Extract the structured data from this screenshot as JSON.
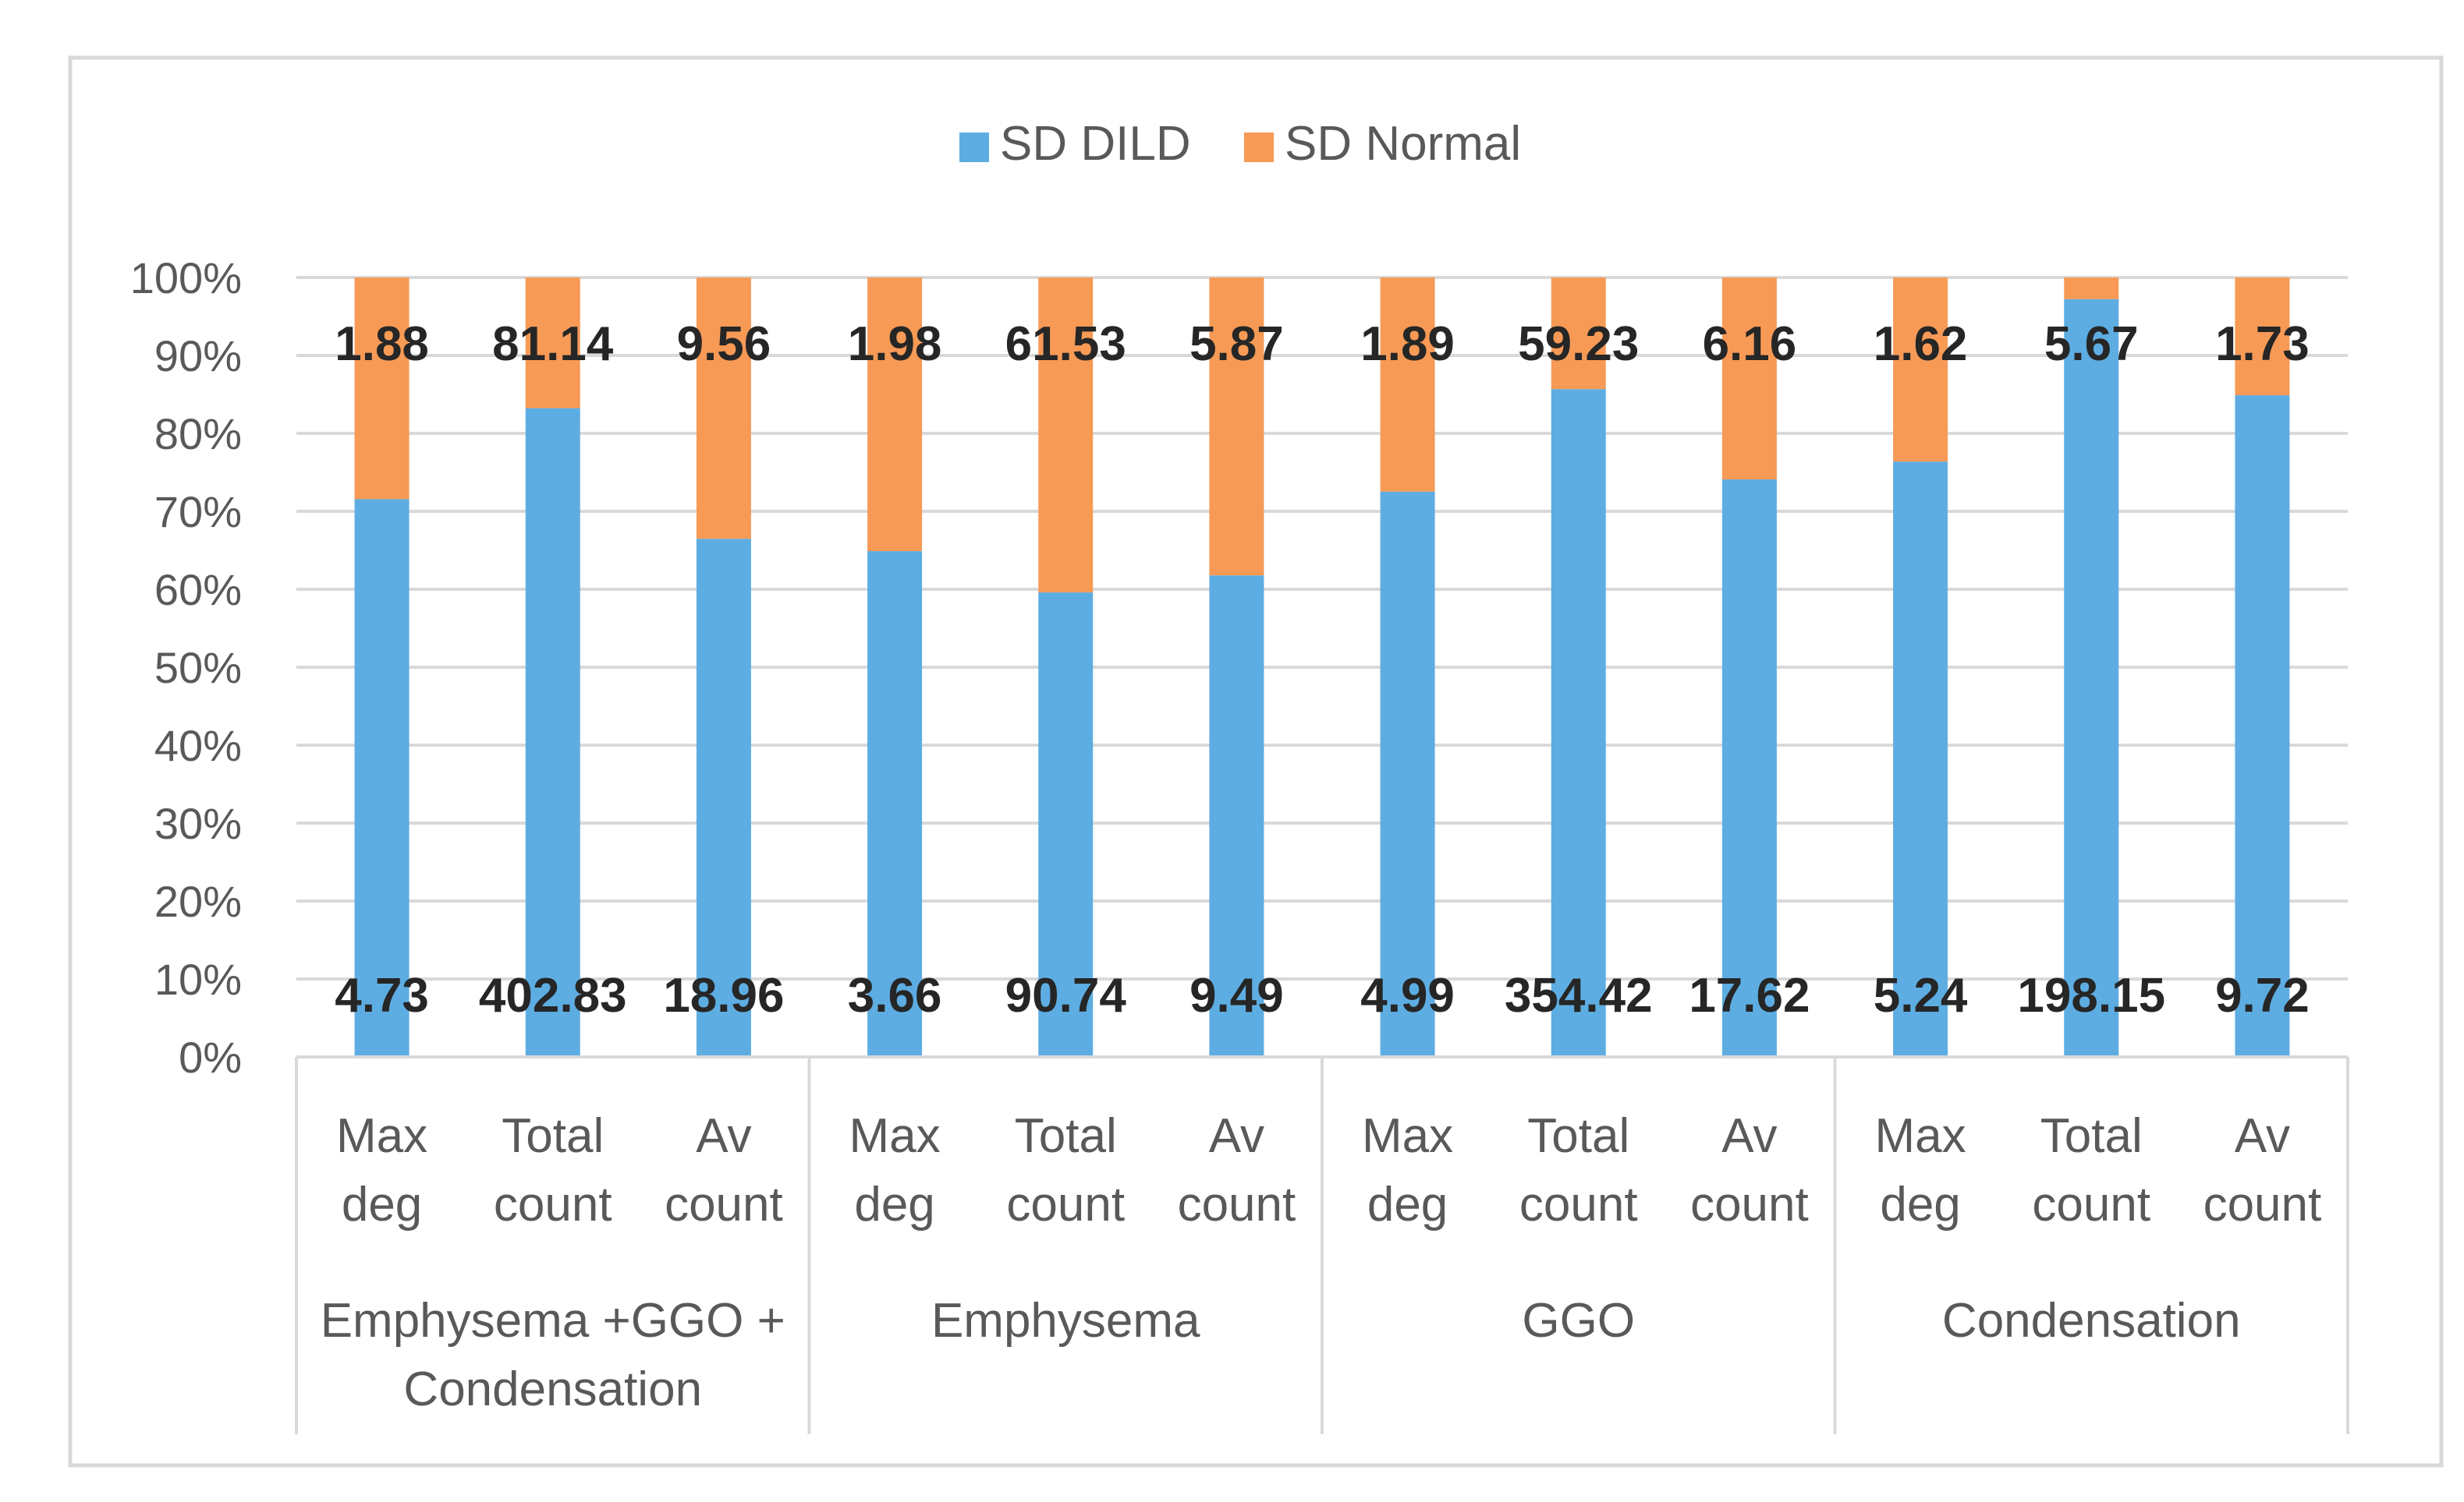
{
  "chart_data": {
    "type": "bar",
    "stacked": "percent",
    "title": "",
    "xlabel": "",
    "ylabel": "",
    "ylim": [
      0,
      100
    ],
    "yticks": [
      "0%",
      "10%",
      "20%",
      "30%",
      "40%",
      "50%",
      "60%",
      "70%",
      "80%",
      "90%",
      "100%"
    ],
    "grid": true,
    "legend_position": "top",
    "categories": [
      "Max deg",
      "Total count",
      "Av count",
      "Max deg",
      "Total count",
      "Av count",
      "Max deg",
      "Total count",
      "Av count",
      "Max deg",
      "Total count",
      "Av count"
    ],
    "category_lines": [
      [
        "Max",
        "deg"
      ],
      [
        "Total",
        "count"
      ],
      [
        "Av",
        "count"
      ],
      [
        "Max",
        "deg"
      ],
      [
        "Total",
        "count"
      ],
      [
        "Av",
        "count"
      ],
      [
        "Max",
        "deg"
      ],
      [
        "Total",
        "count"
      ],
      [
        "Av",
        "count"
      ],
      [
        "Max",
        "deg"
      ],
      [
        "Total",
        "count"
      ],
      [
        "Av",
        "count"
      ]
    ],
    "groups": [
      {
        "lines": [
          "Emphysema +GGO +",
          "Condensation"
        ]
      },
      {
        "lines": [
          "Emphysema"
        ]
      },
      {
        "lines": [
          "GGO"
        ]
      },
      {
        "lines": [
          "Condensation"
        ]
      }
    ],
    "series": [
      {
        "name": "SD DILD",
        "color": "#5DADE2",
        "values": [
          4.73,
          402.83,
          18.96,
          3.66,
          90.74,
          9.49,
          4.99,
          354.42,
          17.62,
          5.24,
          198.15,
          9.72
        ]
      },
      {
        "name": "SD Normal",
        "color": "#F79A56",
        "values": [
          1.88,
          81.14,
          9.56,
          1.98,
          61.53,
          5.87,
          1.89,
          59.23,
          6.16,
          1.62,
          5.67,
          1.73
        ]
      }
    ]
  }
}
